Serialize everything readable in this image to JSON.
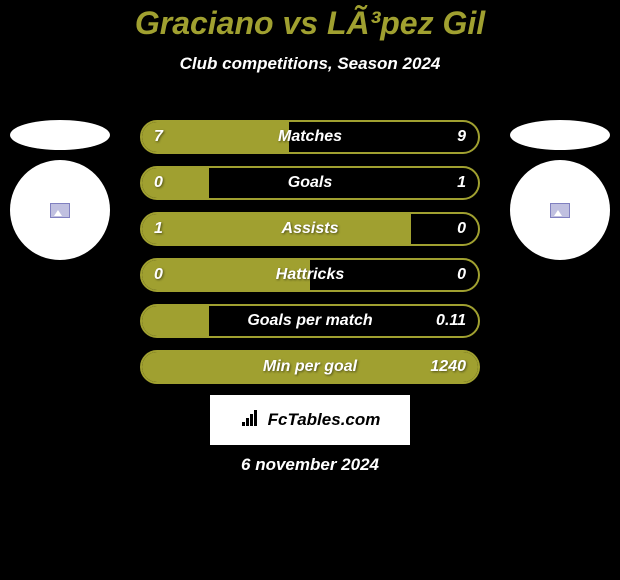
{
  "header": {
    "title": "Graciano vs LÃ³pez Gil",
    "subtitle": "Club competitions, Season 2024"
  },
  "colors": {
    "background": "#000000",
    "accent": "#a0a030",
    "text": "#ffffff",
    "avatar_bg": "#ffffff"
  },
  "stats": [
    {
      "label": "Matches",
      "left_val": "7",
      "right_val": "9",
      "left_pct": 43.75,
      "right_pct": 56.25
    },
    {
      "label": "Goals",
      "left_val": "0",
      "right_val": "1",
      "left_pct": 20,
      "right_pct": 80
    },
    {
      "label": "Assists",
      "left_val": "1",
      "right_val": "0",
      "left_pct": 80,
      "right_pct": 20
    },
    {
      "label": "Hattricks",
      "left_val": "0",
      "right_val": "0",
      "left_pct": 50,
      "right_pct": 0
    },
    {
      "label": "Goals per match",
      "left_val": "",
      "right_val": "0.11",
      "left_pct": 20,
      "right_pct": 80
    },
    {
      "label": "Min per goal",
      "left_val": "",
      "right_val": "1240",
      "left_pct": 100,
      "right_pct": 0
    }
  ],
  "branding": {
    "text": "FcTables.com"
  },
  "date": "6 november 2024"
}
